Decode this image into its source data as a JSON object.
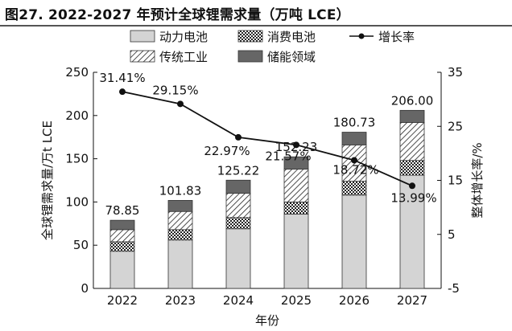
{
  "figure_title": "图27. 2022-2027 年预计全球锂需求量（万吨 LCE）",
  "chart_data": {
    "type": "bar",
    "stacked": true,
    "categories": [
      "2022",
      "2023",
      "2024",
      "2025",
      "2026",
      "2027"
    ],
    "series": [
      {
        "name": "动力电池",
        "pattern": "light-gray",
        "color": "#d4d4d4",
        "values": [
          43,
          56,
          69,
          86,
          108,
          131
        ]
      },
      {
        "name": "消费电池",
        "pattern": "crosshatch",
        "color": "#555555",
        "values": [
          11,
          12,
          13,
          14,
          16,
          17
        ]
      },
      {
        "name": "传统工业",
        "pattern": "diagonal",
        "color": "#777777",
        "values": [
          14,
          21,
          28,
          38,
          42,
          44
        ]
      },
      {
        "name": "储能领域",
        "pattern": "dark-gray",
        "color": "#666666",
        "values": [
          10.85,
          12.83,
          15.22,
          14.23,
          14.73,
          14.0
        ]
      }
    ],
    "totals": [
      78.85,
      101.83,
      125.22,
      152.23,
      180.73,
      206.0
    ],
    "total_labels": [
      "78.85",
      "101.83",
      "125.22",
      "152.23",
      "180.73",
      "206.00"
    ],
    "growth_series": {
      "name": "增长率",
      "values": [
        31.41,
        29.15,
        22.97,
        21.57,
        18.72,
        13.99
      ]
    },
    "growth_labels": [
      "31.41%",
      "29.15%",
      "22.97%",
      "21.57%",
      "18.72%",
      "13.99%"
    ],
    "xlabel": "年份",
    "ylabel": "全球锂需求量/万t LCE",
    "y2label": "整体增长率/%",
    "ylim": [
      0,
      250
    ],
    "y2lim": [
      -5,
      35
    ],
    "yticks": [
      "0",
      "50",
      "100",
      "150",
      "200",
      "250"
    ],
    "y2ticks": [
      "-5",
      "5",
      "15",
      "25",
      "35"
    ],
    "grid": false,
    "legend_position": "top"
  }
}
